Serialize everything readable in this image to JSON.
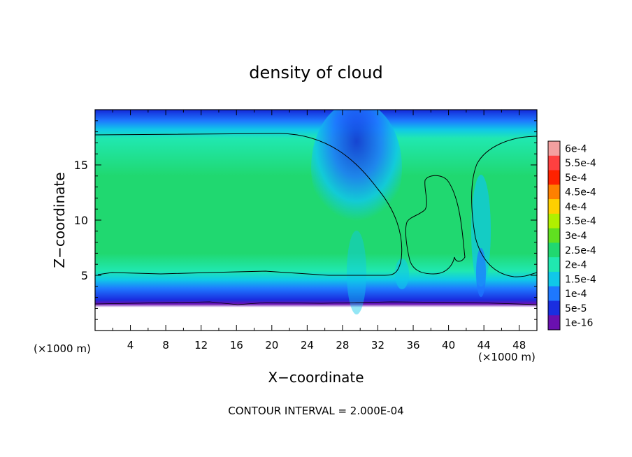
{
  "chart_data": {
    "type": "heatmap",
    "title": "density of cloud",
    "xlabel": "X−coordinate",
    "ylabel": "Z−coordinate",
    "x_unit_left": "(×1000 m)",
    "x_unit_right": "(×1000 m)",
    "xlim": [
      0,
      50
    ],
    "ylim": [
      0,
      20
    ],
    "xticks": [
      4,
      8,
      12,
      16,
      20,
      24,
      28,
      32,
      36,
      40,
      44,
      48
    ],
    "yticks": [
      5,
      10,
      15
    ],
    "colorbar": {
      "labels": [
        "6e-4",
        "5.5e-4",
        "5e-4",
        "4.5e-4",
        "4e-4",
        "3.5e-4",
        "3e-4",
        "2.5e-4",
        "2e-4",
        "1.5e-4",
        "1e-4",
        "5e-5",
        "1e-16"
      ],
      "colors": [
        "#f4a0a0",
        "#ff4040",
        "#ff2200",
        "#ff8000",
        "#ffd000",
        "#b0f000",
        "#60e020",
        "#20d870",
        "#20e8b0",
        "#10c8e8",
        "#1e78ff",
        "#1a2ee0",
        "#6a10b0"
      ]
    },
    "contour_interval_text": "CONTOUR INTERVAL = 2.000E-04"
  }
}
